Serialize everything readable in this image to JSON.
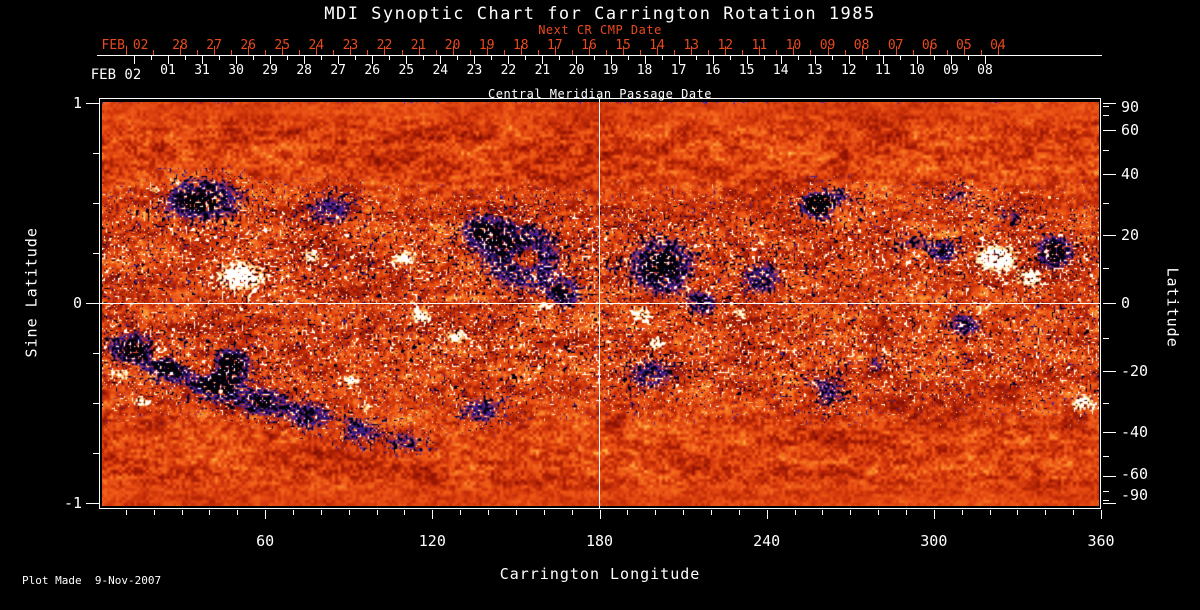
{
  "footer": {
    "plot_made": "Plot Made  9-Nov-2007"
  },
  "colors": {
    "background": "#000000",
    "foreground": "#ffffff",
    "accent_red": "#e8491d"
  },
  "chart_data": {
    "type": "heatmap",
    "title": "MDI Synoptic Chart for Carrington Rotation 1985",
    "xlabel": "Carrington Longitude",
    "ylabel_left": "Sine Latitude",
    "ylabel_right": "Latitude",
    "top_axis": {
      "red_title": "Next CR CMP Date",
      "white_title": "Central Meridian Passage Date",
      "red_month_label": "FEB 02",
      "white_month_label": "FEB 02",
      "red_days": [
        "28",
        "27",
        "26",
        "25",
        "24",
        "23",
        "22",
        "21",
        "20",
        "19",
        "18",
        "17",
        "16",
        "15",
        "14",
        "13",
        "12",
        "11",
        "10",
        "09",
        "08",
        "07",
        "06",
        "05",
        "04"
      ],
      "white_days": [
        "01",
        "31",
        "30",
        "29",
        "28",
        "27",
        "26",
        "25",
        "24",
        "23",
        "22",
        "21",
        "20",
        "19",
        "18",
        "17",
        "16",
        "15",
        "14",
        "13",
        "12",
        "11",
        "10",
        "09",
        "08"
      ]
    },
    "x_axis": {
      "range": [
        0,
        360
      ],
      "major_ticks": [
        60,
        120,
        180,
        240,
        300,
        360
      ],
      "minor_step_deg": 10
    },
    "y_left": {
      "range": [
        1,
        -1
      ],
      "major_ticks": [
        1,
        0,
        -1
      ],
      "major_labels": [
        "1",
        "0",
        "-1"
      ],
      "minor_ticks": [
        0.75,
        0.5,
        0.25,
        -0.25,
        -0.5,
        -0.75
      ]
    },
    "y_right": {
      "major_ticks_deg": [
        90,
        60,
        40,
        20,
        0,
        -20,
        -40,
        -60,
        -90
      ],
      "major_labels": [
        "90",
        "60",
        "40",
        "20",
        "0",
        "-20",
        "-40",
        "-60",
        "-90"
      ],
      "minor_ticks_deg": [
        80,
        70,
        50,
        30,
        10,
        -10,
        -30,
        -50,
        -70,
        -80
      ]
    },
    "grid_lines": {
      "longitude_deg": 180,
      "sine_latitude": 0
    },
    "noise_seed": 1985,
    "palette_stops": [
      [
        0,
        "#5a0b03"
      ],
      [
        0.18,
        "#951503"
      ],
      [
        0.38,
        "#c22c07"
      ],
      [
        0.56,
        "#e64a12"
      ],
      [
        0.72,
        "#f2691d"
      ],
      [
        0.86,
        "#fa9433"
      ],
      [
        0.95,
        "#ffc35c"
      ],
      [
        1,
        "#ffe59a"
      ]
    ],
    "positive_colors": {
      "fringe": "#ffdf8e",
      "core": "#ffffff"
    },
    "negative_colors": {
      "fringe": "#4620a0",
      "mid": "#150a30",
      "core": "#030108"
    },
    "region_format": [
      "lon_deg",
      "sine_lat",
      "radius_lon_deg",
      "radius_sine_lat",
      "amplitude"
    ],
    "active_regions": [
      [
        36.6,
        0.52,
        18,
        0.125,
        -1.25
      ],
      [
        83,
        0.47,
        12.6,
        0.11,
        -0.85
      ],
      [
        137,
        0.37,
        9,
        0.09,
        -0.9
      ],
      [
        151.5,
        0.24,
        16,
        0.19,
        -1.3
      ],
      [
        167,
        0.05,
        8,
        0.09,
        -0.95
      ],
      [
        202,
        0.19,
        14.4,
        0.17,
        -1.25
      ],
      [
        217,
        0.0,
        6.5,
        0.08,
        -0.9
      ],
      [
        238,
        0.13,
        10,
        0.11,
        -0.95
      ],
      [
        263,
        0.49,
        11.8,
        0.1,
        -1.1
      ],
      [
        291,
        0.27,
        8.6,
        0.09,
        -0.9
      ],
      [
        304,
        0.26,
        7.2,
        0.07,
        -0.95
      ],
      [
        311,
        -0.1,
        7.9,
        0.08,
        -1.0
      ],
      [
        343,
        0.26,
        7.9,
        0.1,
        -1.35
      ],
      [
        11.5,
        -0.22,
        10,
        0.09,
        -1.25
      ],
      [
        25.8,
        -0.31,
        10,
        0.09,
        -1.3
      ],
      [
        42,
        -0.41,
        10,
        0.09,
        -1.25
      ],
      [
        59,
        -0.49,
        10,
        0.09,
        -1.1
      ],
      [
        76,
        -0.56,
        10,
        0.09,
        -0.95
      ],
      [
        93,
        -0.63,
        10,
        0.09,
        -0.85
      ],
      [
        111,
        -0.69,
        10,
        0.08,
        -0.7
      ],
      [
        137,
        -0.53,
        10,
        0.09,
        -0.9
      ],
      [
        198,
        -0.35,
        11.5,
        0.11,
        -0.9
      ],
      [
        259,
        -0.44,
        11.5,
        0.11,
        -0.9
      ],
      [
        278,
        -0.29,
        6.5,
        0.065,
        -0.85
      ],
      [
        257.4,
        0.5,
        4.3,
        0.045,
        -1.45
      ],
      [
        47.4,
        -0.29,
        7.9,
        0.08,
        -1.35
      ],
      [
        309,
        0.54,
        10.8,
        0.08,
        -0.65
      ],
      [
        327,
        0.44,
        9,
        0.07,
        -0.65
      ],
      [
        51,
        0.14,
        9.3,
        0.08,
        1.5
      ],
      [
        20.5,
        0.57,
        3.9,
        0.04,
        1.15
      ],
      [
        76,
        0.24,
        3.9,
        0.04,
        1.0
      ],
      [
        110,
        0.23,
        5,
        0.045,
        1.15
      ],
      [
        115.6,
        -0.06,
        4.7,
        0.045,
        1.1
      ],
      [
        128,
        -0.16,
        4.7,
        0.045,
        1.1
      ],
      [
        153,
        0.23,
        5.4,
        0.055,
        1.2
      ],
      [
        159,
        -0.01,
        3.9,
        0.04,
        1.05
      ],
      [
        194.6,
        -0.05,
        4.7,
        0.045,
        1.1
      ],
      [
        200,
        -0.2,
        4.3,
        0.045,
        1.05
      ],
      [
        216,
        0.11,
        3.2,
        0.035,
        0.95
      ],
      [
        230.5,
        -0.05,
        3.2,
        0.035,
        0.95
      ],
      [
        267.5,
        0.46,
        4.3,
        0.04,
        1.4
      ],
      [
        254,
        -0.46,
        4.3,
        0.045,
        1.1
      ],
      [
        273.6,
        -0.27,
        3.9,
        0.04,
        1.05
      ],
      [
        292,
        0.23,
        5.4,
        0.05,
        1.2
      ],
      [
        322,
        0.23,
        8.6,
        0.07,
        1.55
      ],
      [
        334,
        0.13,
        5.4,
        0.05,
        1.25
      ],
      [
        316,
        -0.03,
        3.6,
        0.035,
        0.95
      ],
      [
        353,
        -0.49,
        4.7,
        0.05,
        1.15
      ],
      [
        90.5,
        -0.38,
        3.9,
        0.04,
        1.1
      ],
      [
        96,
        -0.52,
        3.6,
        0.035,
        1.0
      ],
      [
        31,
        -0.28,
        3.9,
        0.04,
        1.15
      ],
      [
        8.6,
        -0.35,
        3.9,
        0.04,
        1.1
      ],
      [
        15,
        -0.49,
        3.6,
        0.035,
        1.0
      ],
      [
        85,
        -0.62,
        3.2,
        0.035,
        0.95
      ],
      [
        22.3,
        -0.24,
        4.3,
        0.04,
        1.15
      ],
      [
        38.4,
        -0.31,
        4.3,
        0.045,
        1.2
      ]
    ]
  }
}
